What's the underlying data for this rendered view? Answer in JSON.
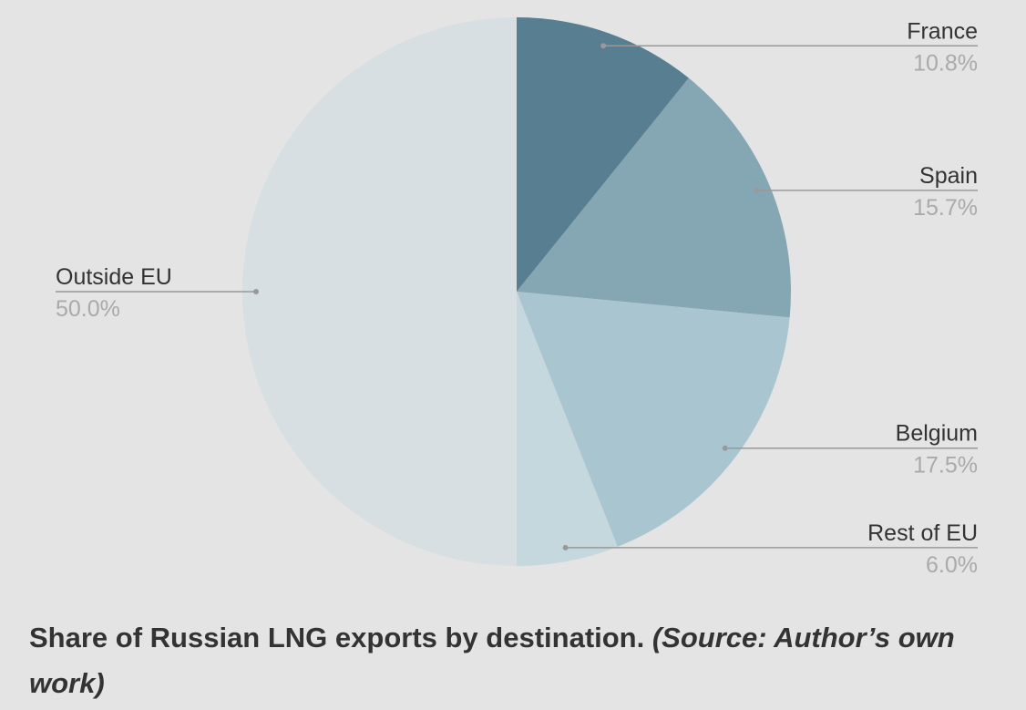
{
  "chart_data": {
    "type": "pie",
    "categories": [
      "France",
      "Spain",
      "Belgium",
      "Rest of EU",
      "Outside EU"
    ],
    "values": [
      10.8,
      15.7,
      17.5,
      6.0,
      50.0
    ],
    "value_labels": [
      "10.8%",
      "15.7%",
      "17.5%",
      "6.0%",
      "50.0%"
    ],
    "colors": [
      "#577e91",
      "#84a7b3",
      "#a9c5cf",
      "#c5d8de",
      "#d8dfe2"
    ],
    "caption": "Share of Russian LNG exports by destination.",
    "source": "(Source: Author’s own work)"
  }
}
